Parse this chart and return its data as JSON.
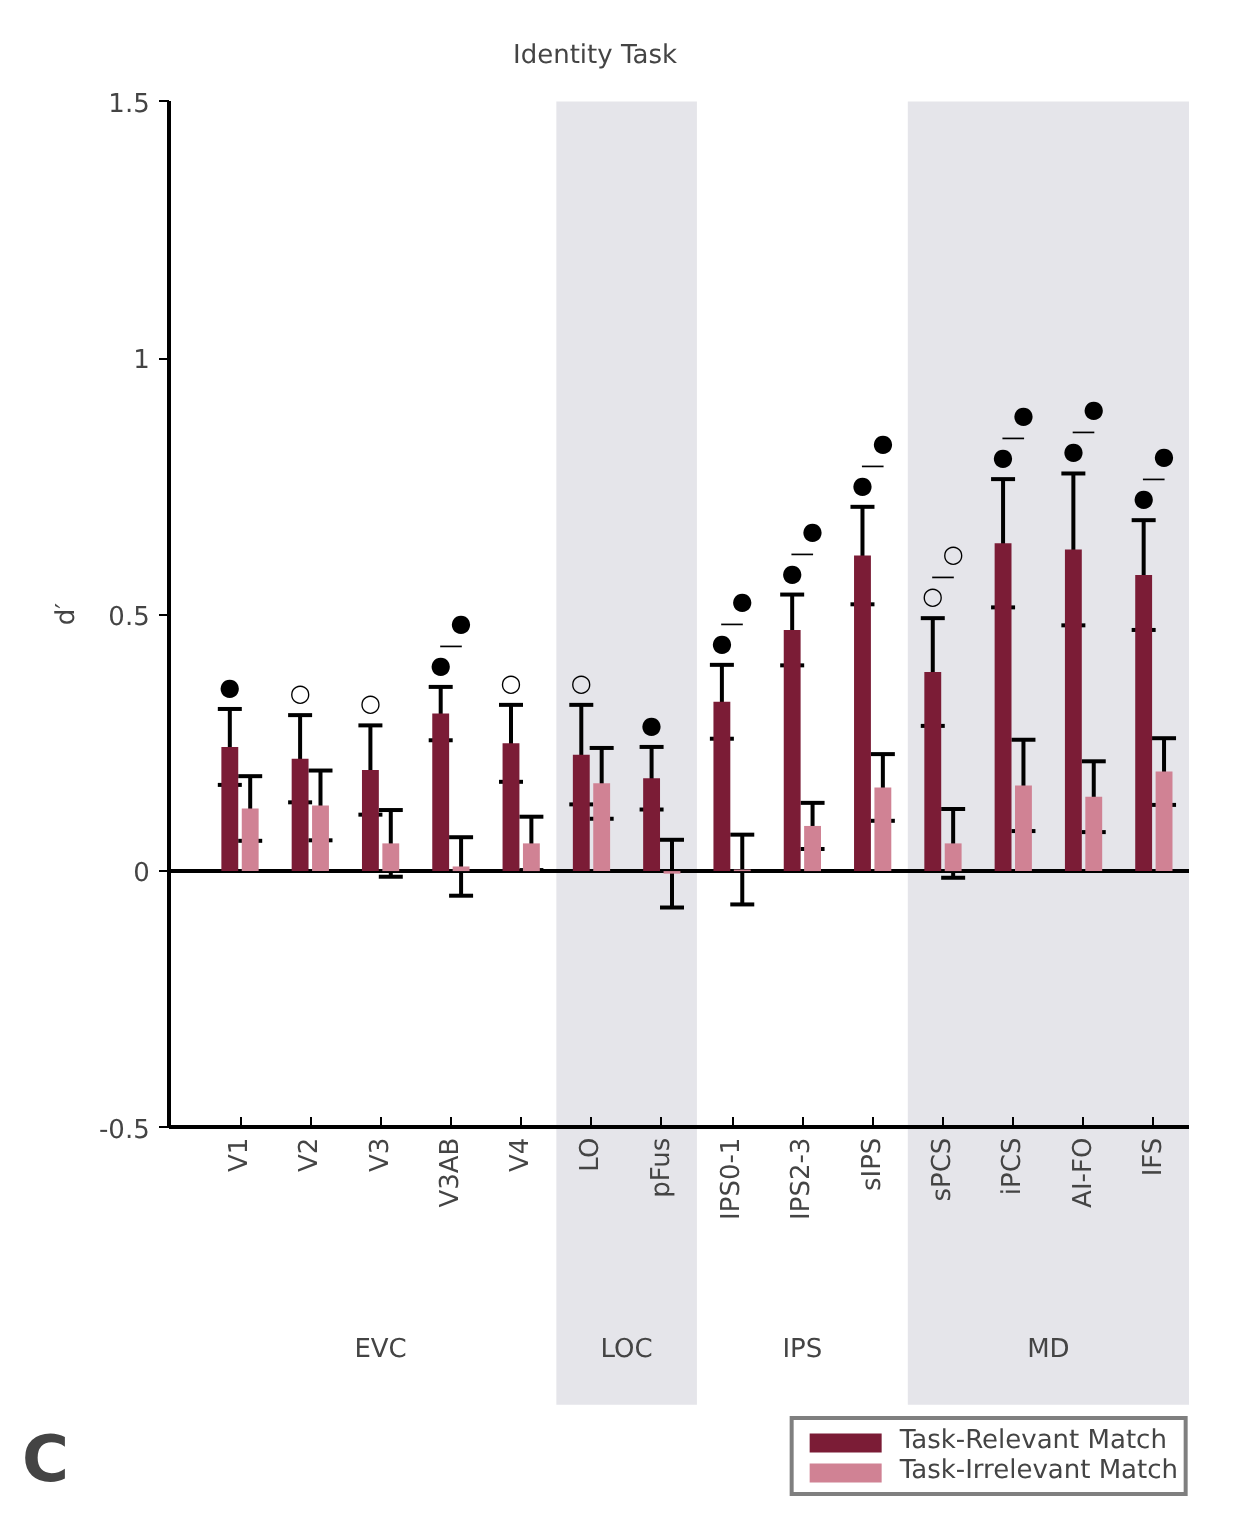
{
  "chart_data": {
    "type": "bar",
    "title": "Identity Task",
    "ylabel": "d′",
    "categories": [
      "V1",
      "V2",
      "V3",
      "V3AB",
      "V4",
      "LO",
      "pFus",
      "IPS0-1",
      "IPS2-3",
      "sIPS",
      "sPCS",
      "iPCS",
      "AI-FO",
      "IFS"
    ],
    "series": [
      {
        "name": "Task-Relevant Match",
        "color": "#7b1c36",
        "values": [
          0.242,
          0.219,
          0.197,
          0.307,
          0.249,
          0.227,
          0.181,
          0.33,
          0.47,
          0.615,
          0.388,
          0.639,
          0.627,
          0.577
        ],
        "errors": [
          0.074,
          0.085,
          0.087,
          0.052,
          0.075,
          0.097,
          0.061,
          0.072,
          0.069,
          0.095,
          0.105,
          0.125,
          0.148,
          0.107
        ]
      },
      {
        "name": "Task-Irrelevant Match",
        "color": "#d08294",
        "values": [
          0.122,
          0.128,
          0.054,
          0.009,
          0.054,
          0.171,
          -0.005,
          0.003,
          0.088,
          0.163,
          0.054,
          0.167,
          0.145,
          0.194
        ],
        "errors": [
          0.063,
          0.068,
          0.065,
          0.057,
          0.052,
          0.069,
          0.066,
          0.068,
          0.045,
          0.065,
          0.067,
          0.089,
          0.069,
          0.065
        ]
      }
    ],
    "ylim": [
      -0.5,
      1.5
    ],
    "yticks": [
      -0.5,
      0,
      0.5,
      1,
      1.5
    ],
    "grid": false,
    "legend": "bottom right",
    "ref_lines": [
      {
        "axis": "y",
        "value": 0
      }
    ],
    "bands": [
      {
        "axis": "x",
        "from": "LO",
        "to": "pFus",
        "label": "LOC",
        "color": "#e5e5ea"
      },
      {
        "axis": "x",
        "from": "sPCS",
        "to": "IFS",
        "label": "MD",
        "color": "#e5e5ea"
      }
    ],
    "annotations": [
      {
        "text": "●",
        "x": "V1",
        "y": 0.316
      },
      {
        "text": "○",
        "x": "V2",
        "y": 0.304
      },
      {
        "text": "○",
        "x": "V3",
        "y": 0.284
      },
      {
        "text": "●",
        "x": "V3AB",
        "y": 0.359
      },
      {
        "text": "—",
        "x": "V3AB",
        "y": 0.359
      },
      {
        "text": "●",
        "x": "V3AB",
        "y": 0.359
      },
      {
        "text": "○",
        "x": "V4",
        "y": 0.324
      },
      {
        "text": "○",
        "x": "LO",
        "y": 0.324
      },
      {
        "text": "●",
        "x": "pFus",
        "y": 0.242
      },
      {
        "text": "●",
        "x": "IPS0-1",
        "y": 0.402
      },
      {
        "text": "—",
        "x": "IPS0-1",
        "y": 0.402
      },
      {
        "text": "●",
        "x": "IPS0-1",
        "y": 0.402
      },
      {
        "text": "●",
        "x": "IPS2-3",
        "y": 0.539
      },
      {
        "text": "—",
        "x": "IPS2-3",
        "y": 0.539
      },
      {
        "text": "●",
        "x": "IPS2-3",
        "y": 0.539
      },
      {
        "text": "●",
        "x": "sIPS",
        "y": 0.71
      },
      {
        "text": "—",
        "x": "sIPS",
        "y": 0.71
      },
      {
        "text": "●",
        "x": "sIPS",
        "y": 0.71
      },
      {
        "text": "○",
        "x": "sPCS",
        "y": 0.493
      },
      {
        "text": "—",
        "x": "sPCS",
        "y": 0.493
      },
      {
        "text": "○",
        "x": "sPCS",
        "y": 0.493
      },
      {
        "text": "●",
        "x": "iPCS",
        "y": 0.764
      },
      {
        "text": "—",
        "x": "iPCS",
        "y": 0.764
      },
      {
        "text": "●",
        "x": "iPCS",
        "y": 0.764
      },
      {
        "text": "●",
        "x": "AI-FO",
        "y": 0.775
      },
      {
        "text": "—",
        "x": "AI-FO",
        "y": 0.775
      },
      {
        "text": "●",
        "x": "AI-FO",
        "y": 0.775
      },
      {
        "text": "●",
        "x": "IFS",
        "y": 0.684
      },
      {
        "text": "—",
        "x": "IFS",
        "y": 0.684
      },
      {
        "text": "●",
        "x": "IFS",
        "y": 0.684
      },
      "EVC",
      "IPS",
      "C"
    ]
  }
}
